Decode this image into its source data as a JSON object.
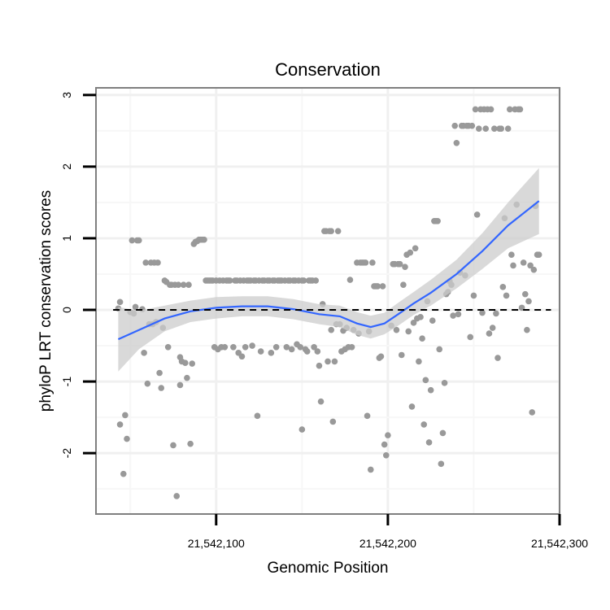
{
  "chart_data": {
    "type": "scatter",
    "title": "Conservation",
    "xlabel": "Genomic Position",
    "ylabel": "phyloP LRT conservation scores",
    "xlim": [
      21542030,
      21542300
    ],
    "ylim": [
      -2.85,
      3.1
    ],
    "x_ticks": [
      {
        "value": 21542100,
        "label": "21,542,100"
      },
      {
        "value": 21542200,
        "label": "21,542,200"
      },
      {
        "value": 21542300,
        "label": "21,542,300"
      }
    ],
    "y_ticks": [
      {
        "value": -2,
        "label": "-2"
      },
      {
        "value": -1,
        "label": "-1"
      },
      {
        "value": 0,
        "label": "0"
      },
      {
        "value": 1,
        "label": "1"
      },
      {
        "value": 2,
        "label": "2"
      },
      {
        "value": 3,
        "label": "3"
      }
    ],
    "reference_line": {
      "y": 0,
      "style": "dashed"
    },
    "point_color": "#999999",
    "smooth_color": "#3366ff",
    "band_color": "#cccccc",
    "points": [
      [
        21542043,
        0.02
      ],
      [
        21542044,
        0.11
      ],
      [
        21542044,
        -1.6
      ],
      [
        21542046,
        -2.29
      ],
      [
        21542047,
        -1.47
      ],
      [
        21542048,
        -1.8
      ],
      [
        21542050,
        -0.03
      ],
      [
        21542051,
        0.97
      ],
      [
        21542052,
        -0.05
      ],
      [
        21542053,
        0.04
      ],
      [
        21542054,
        0.97
      ],
      [
        21542055,
        0.97
      ],
      [
        21542057,
        0.01
      ],
      [
        21542058,
        -0.6
      ],
      [
        21542059,
        0.66
      ],
      [
        21542060,
        -1.03
      ],
      [
        21542061,
        -0.2
      ],
      [
        21542062,
        0.66
      ],
      [
        21542063,
        -0.2
      ],
      [
        21542064,
        0.66
      ],
      [
        21542065,
        -0.17
      ],
      [
        21542066,
        0.66
      ],
      [
        21542067,
        -0.88
      ],
      [
        21542068,
        -1.09
      ],
      [
        21542069,
        -0.25
      ],
      [
        21542070,
        0.41
      ],
      [
        21542071,
        0.39
      ],
      [
        21542072,
        -0.52
      ],
      [
        21542073,
        0.35
      ],
      [
        21542074,
        0.35
      ],
      [
        21542075,
        -1.89
      ],
      [
        21542076,
        0.35
      ],
      [
        21542077,
        -2.6
      ],
      [
        21542078,
        0.35
      ],
      [
        21542079,
        -1.05
      ],
      [
        21542079,
        -0.66
      ],
      [
        21542080,
        -0.72
      ],
      [
        21542081,
        0.35
      ],
      [
        21542082,
        -0.74
      ],
      [
        21542083,
        -0.95
      ],
      [
        21542084,
        0.35
      ],
      [
        21542085,
        -1.87
      ],
      [
        21542086,
        -0.75
      ],
      [
        21542087,
        0.92
      ],
      [
        21542088,
        0.95
      ],
      [
        21542089,
        0.96
      ],
      [
        21542090,
        0.98
      ],
      [
        21542091,
        0.98
      ],
      [
        21542092,
        0.98
      ],
      [
        21542093,
        0.98
      ],
      [
        21542094,
        0.41
      ],
      [
        21542095,
        0.41
      ],
      [
        21542096,
        0.41
      ],
      [
        21542097,
        0.41
      ],
      [
        21542098,
        0.41
      ],
      [
        21542099,
        -0.52
      ],
      [
        21542100,
        0.41
      ],
      [
        21542101,
        -0.55
      ],
      [
        21542102,
        0.41
      ],
      [
        21542103,
        -0.52
      ],
      [
        21542104,
        0.41
      ],
      [
        21542105,
        -0.52
      ],
      [
        21542106,
        0.41
      ],
      [
        21542107,
        0.41
      ],
      [
        21542108,
        0.41
      ],
      [
        21542110,
        -0.52
      ],
      [
        21542111,
        0.41
      ],
      [
        21542112,
        0.41
      ],
      [
        21542113,
        -0.6
      ],
      [
        21542114,
        0.41
      ],
      [
        21542115,
        -0.65
      ],
      [
        21542116,
        0.41
      ],
      [
        21542117,
        -0.52
      ],
      [
        21542118,
        0.41
      ],
      [
        21542119,
        0.41
      ],
      [
        21542120,
        0.41
      ],
      [
        21542121,
        -0.5
      ],
      [
        21542122,
        0.41
      ],
      [
        21542123,
        0.41
      ],
      [
        21542124,
        -1.48
      ],
      [
        21542125,
        0.41
      ],
      [
        21542126,
        -0.58
      ],
      [
        21542127,
        0.41
      ],
      [
        21542128,
        0.41
      ],
      [
        21542130,
        0.41
      ],
      [
        21542131,
        0.41
      ],
      [
        21542132,
        -0.6
      ],
      [
        21542133,
        0.41
      ],
      [
        21542134,
        0.41
      ],
      [
        21542135,
        -0.52
      ],
      [
        21542136,
        0.41
      ],
      [
        21542137,
        0.41
      ],
      [
        21542138,
        0.41
      ],
      [
        21542140,
        0.41
      ],
      [
        21542141,
        -0.52
      ],
      [
        21542142,
        0.41
      ],
      [
        21542143,
        0.41
      ],
      [
        21542144,
        -0.55
      ],
      [
        21542145,
        0.41
      ],
      [
        21542146,
        0.41
      ],
      [
        21542147,
        -0.48
      ],
      [
        21542148,
        0.41
      ],
      [
        21542149,
        -0.52
      ],
      [
        21542150,
        -1.67
      ],
      [
        21542150,
        0.41
      ],
      [
        21542151,
        0.41
      ],
      [
        21542152,
        -0.55
      ],
      [
        21542153,
        -0.58
      ],
      [
        21542154,
        0.41
      ],
      [
        21542155,
        0.41
      ],
      [
        21542156,
        0.41
      ],
      [
        21542157,
        -0.52
      ],
      [
        21542158,
        0.41
      ],
      [
        21542159,
        -0.58
      ],
      [
        21542160,
        -0.78
      ],
      [
        21542161,
        -1.28
      ],
      [
        21542162,
        0.08
      ],
      [
        21542163,
        1.1
      ],
      [
        21542164,
        1.1
      ],
      [
        21542165,
        -0.72
      ],
      [
        21542166,
        1.1
      ],
      [
        21542167,
        -0.28
      ],
      [
        21542167,
        1.1
      ],
      [
        21542168,
        -1.56
      ],
      [
        21542169,
        -0.72
      ],
      [
        21542170,
        -0.2
      ],
      [
        21542171,
        1.1
      ],
      [
        21542172,
        -0.2
      ],
      [
        21542173,
        -0.58
      ],
      [
        21542174,
        -0.29
      ],
      [
        21542175,
        -0.55
      ],
      [
        21542176,
        -0.25
      ],
      [
        21542177,
        -0.52
      ],
      [
        21542178,
        0.42
      ],
      [
        21542179,
        -0.52
      ],
      [
        21542180,
        -0.28
      ],
      [
        21542182,
        0.66
      ],
      [
        21542183,
        -0.33
      ],
      [
        21542184,
        0.66
      ],
      [
        21542185,
        0.66
      ],
      [
        21542186,
        0.66
      ],
      [
        21542187,
        0.66
      ],
      [
        21542188,
        -1.48
      ],
      [
        21542189,
        -0.3
      ],
      [
        21542190,
        -2.23
      ],
      [
        21542191,
        0.66
      ],
      [
        21542192,
        0.33
      ],
      [
        21542193,
        0.33
      ],
      [
        21542194,
        0.33
      ],
      [
        21542195,
        -0.67
      ],
      [
        21542196,
        -0.65
      ],
      [
        21542197,
        0.33
      ],
      [
        21542198,
        -1.88
      ],
      [
        21542199,
        -2.03
      ],
      [
        21542200,
        -1.75
      ],
      [
        21542202,
        -0.22
      ],
      [
        21542203,
        0.64
      ],
      [
        21542204,
        0.64
      ],
      [
        21542205,
        -0.28
      ],
      [
        21542206,
        0.64
      ],
      [
        21542207,
        0.64
      ],
      [
        21542208,
        -0.63
      ],
      [
        21542209,
        0.35
      ],
      [
        21542210,
        0.6
      ],
      [
        21542211,
        0.77
      ],
      [
        21542212,
        -0.3
      ],
      [
        21542213,
        0.8
      ],
      [
        21542214,
        -1.35
      ],
      [
        21542215,
        -0.18
      ],
      [
        21542216,
        0.86
      ],
      [
        21542217,
        -0.12
      ],
      [
        21542218,
        -0.72
      ],
      [
        21542219,
        -0.1
      ],
      [
        21542220,
        -0.4
      ],
      [
        21542221,
        -1.6
      ],
      [
        21542222,
        -0.98
      ],
      [
        21542223,
        0.12
      ],
      [
        21542224,
        -1.85
      ],
      [
        21542225,
        -1.12
      ],
      [
        21542226,
        -0.15
      ],
      [
        21542227,
        1.24
      ],
      [
        21542228,
        1.24
      ],
      [
        21542229,
        1.24
      ],
      [
        21542230,
        -0.55
      ],
      [
        21542231,
        -2.15
      ],
      [
        21542232,
        -1.72
      ],
      [
        21542233,
        -1.02
      ],
      [
        21542234,
        0.22
      ],
      [
        21542235,
        0.25
      ],
      [
        21542236,
        0.4
      ],
      [
        21542237,
        0.35
      ],
      [
        21542238,
        -0.08
      ],
      [
        21542239,
        2.57
      ],
      [
        21542240,
        2.33
      ],
      [
        21542241,
        -0.06
      ],
      [
        21542242,
        0.52
      ],
      [
        21542243,
        2.57
      ],
      [
        21542244,
        2.57
      ],
      [
        21542245,
        0.48
      ],
      [
        21542246,
        2.57
      ],
      [
        21542247,
        2.57
      ],
      [
        21542248,
        -0.38
      ],
      [
        21542249,
        2.57
      ],
      [
        21542250,
        0.2
      ],
      [
        21542251,
        2.8
      ],
      [
        21542252,
        1.33
      ],
      [
        21542253,
        2.53
      ],
      [
        21542254,
        2.8
      ],
      [
        21542255,
        -0.04
      ],
      [
        21542256,
        2.8
      ],
      [
        21542257,
        2.53
      ],
      [
        21542258,
        2.8
      ],
      [
        21542259,
        -0.33
      ],
      [
        21542260,
        2.8
      ],
      [
        21542261,
        -0.25
      ],
      [
        21542262,
        2.53
      ],
      [
        21542263,
        -0.05
      ],
      [
        21542264,
        -0.67
      ],
      [
        21542265,
        2.53
      ],
      [
        21542266,
        2.53
      ],
      [
        21542267,
        0.32
      ],
      [
        21542268,
        1.28
      ],
      [
        21542269,
        0.2
      ],
      [
        21542270,
        2.53
      ],
      [
        21542271,
        2.8
      ],
      [
        21542272,
        0.77
      ],
      [
        21542273,
        0.62
      ],
      [
        21542274,
        2.8
      ],
      [
        21542275,
        1.47
      ],
      [
        21542276,
        2.8
      ],
      [
        21542277,
        2.8
      ],
      [
        21542278,
        0.03
      ],
      [
        21542279,
        0.66
      ],
      [
        21542280,
        0.22
      ],
      [
        21542281,
        -0.28
      ],
      [
        21542282,
        0.12
      ],
      [
        21542283,
        0.62
      ],
      [
        21542284,
        -1.43
      ],
      [
        21542285,
        0.56
      ],
      [
        21542286,
        1.45
      ],
      [
        21542287,
        0.77
      ],
      [
        21542288,
        0.77
      ]
    ],
    "smooth": [
      {
        "x": 21542043,
        "y": -0.41,
        "lo": -0.86,
        "hi": 0.04
      },
      {
        "x": 21542055,
        "y": -0.28,
        "lo": -0.55,
        "hi": -0.01
      },
      {
        "x": 21542070,
        "y": -0.12,
        "lo": -0.3,
        "hi": 0.06
      },
      {
        "x": 21542085,
        "y": -0.02,
        "lo": -0.17,
        "hi": 0.13
      },
      {
        "x": 21542100,
        "y": 0.03,
        "lo": -0.12,
        "hi": 0.18
      },
      {
        "x": 21542115,
        "y": 0.05,
        "lo": -0.09,
        "hi": 0.19
      },
      {
        "x": 21542130,
        "y": 0.05,
        "lo": -0.09,
        "hi": 0.19
      },
      {
        "x": 21542145,
        "y": 0.01,
        "lo": -0.13,
        "hi": 0.15
      },
      {
        "x": 21542160,
        "y": -0.06,
        "lo": -0.2,
        "hi": 0.08
      },
      {
        "x": 21542172,
        "y": -0.09,
        "lo": -0.24,
        "hi": 0.06
      },
      {
        "x": 21542182,
        "y": -0.19,
        "lo": -0.35,
        "hi": -0.03
      },
      {
        "x": 21542190,
        "y": -0.24,
        "lo": -0.4,
        "hi": -0.08
      },
      {
        "x": 21542198,
        "y": -0.19,
        "lo": -0.34,
        "hi": -0.04
      },
      {
        "x": 21542206,
        "y": -0.06,
        "lo": -0.22,
        "hi": 0.1
      },
      {
        "x": 21542215,
        "y": 0.09,
        "lo": -0.07,
        "hi": 0.25
      },
      {
        "x": 21542225,
        "y": 0.24,
        "lo": 0.06,
        "hi": 0.42
      },
      {
        "x": 21542240,
        "y": 0.5,
        "lo": 0.3,
        "hi": 0.7
      },
      {
        "x": 21542255,
        "y": 0.82,
        "lo": 0.57,
        "hi": 1.07
      },
      {
        "x": 21542270,
        "y": 1.18,
        "lo": 0.86,
        "hi": 1.5
      },
      {
        "x": 21542288,
        "y": 1.52,
        "lo": 1.06,
        "hi": 1.98
      }
    ]
  }
}
